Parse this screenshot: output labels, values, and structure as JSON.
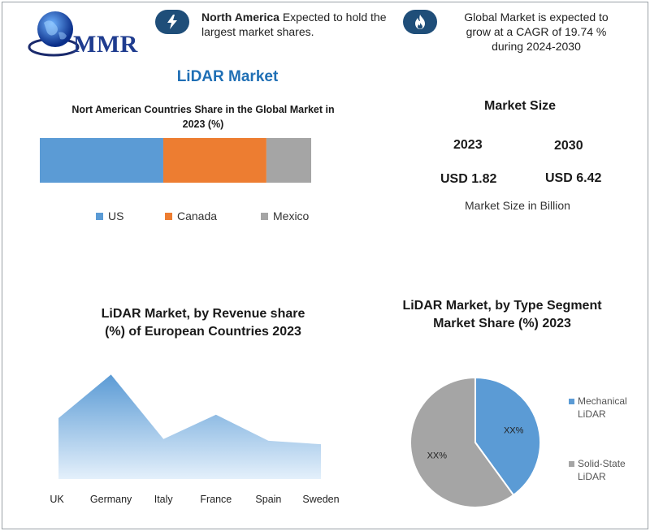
{
  "header": {
    "logo_text": "MMR",
    "note1": {
      "bold": "North America",
      "rest": " Expected to hold the",
      "line2": "largest market shares."
    },
    "note2": {
      "line1": "Global Market is expected to",
      "line2": "grow at a CAGR of 19.74 %",
      "line3": "during 2024-2030"
    },
    "icons": {
      "logo": "globe-icon",
      "note1": "lightning-icon",
      "note2": "flame-icon"
    }
  },
  "main_title": "LiDAR Market",
  "market_size": {
    "title": "Market Size",
    "year_a": "2023",
    "year_b": "2030",
    "value_a": "USD 1.82",
    "value_b": "USD 6.42",
    "unit": "Market Size in Billion"
  },
  "colors": {
    "us": "#5b9bd5",
    "canada": "#ed7d31",
    "mexico": "#a5a5a5",
    "title_blue": "#1f6fb5",
    "badge": "#1f4e79"
  },
  "chart_data": [
    {
      "type": "bar",
      "orientation": "horizontal-stacked",
      "title_line1": "Nort American Countries Share in the Global Market in",
      "title_line2": "2023  (%)",
      "categories": [
        "2023"
      ],
      "series": [
        {
          "name": "US",
          "values": [
            45.5
          ]
        },
        {
          "name": "Canada",
          "values": [
            38
          ]
        },
        {
          "name": "Mexico",
          "values": [
            16.5
          ]
        }
      ],
      "legend": "bottom",
      "grid": false
    },
    {
      "type": "area",
      "title_line1": "LiDAR Market, by Revenue share",
      "title_line2": "(%) of European Countries 2023",
      "categories": [
        "UK",
        "Germany",
        "Italy",
        "France",
        "Spain",
        "Sweden"
      ],
      "values": [
        35,
        60,
        23,
        37,
        22,
        20
      ],
      "ylim": [
        0,
        70
      ],
      "grid": false
    },
    {
      "type": "pie",
      "title_line1": "LiDAR Market, by Type Segment",
      "title_line2": "Market Share (%) 2023",
      "slices": [
        {
          "name": "Mechanical LiDAR",
          "name_line1": "Mechanical",
          "name_line2": "LiDAR",
          "value": 40,
          "label": "XX%"
        },
        {
          "name": "Solid-State LiDAR",
          "name_line1": "Solid-State",
          "name_line2": "LiDAR",
          "value": 60,
          "label": "XX%"
        }
      ],
      "legend": "right"
    }
  ]
}
